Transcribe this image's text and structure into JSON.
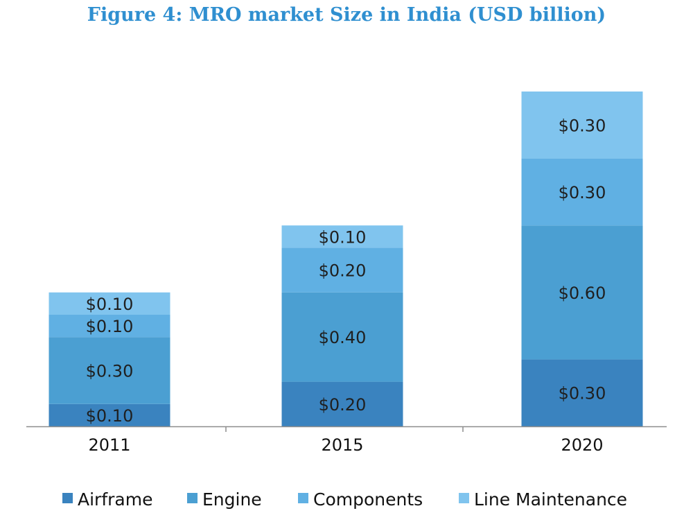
{
  "chart_data": {
    "type": "bar",
    "stacked": true,
    "title": "Figure 4: MRO market Size in India (USD billion)",
    "categories": [
      "2011",
      "2015",
      "2020"
    ],
    "series": [
      {
        "name": "Airframe",
        "color": "#3a83bf",
        "values": [
          0.1,
          0.2,
          0.3
        ],
        "labels": [
          "$0.10",
          "$0.20",
          "$0.30"
        ]
      },
      {
        "name": "Engine",
        "color": "#4b9fd2",
        "values": [
          0.3,
          0.4,
          0.6
        ],
        "labels": [
          "$0.30",
          "$0.40",
          "$0.60"
        ]
      },
      {
        "name": "Components",
        "color": "#60b0e3",
        "values": [
          0.1,
          0.2,
          0.3
        ],
        "labels": [
          "$0.10",
          "$0.20",
          "$0.30"
        ]
      },
      {
        "name": "Line Maintenance",
        "color": "#80c4ee",
        "values": [
          0.1,
          0.1,
          0.3
        ],
        "labels": [
          "$0.10",
          "$0.10",
          "$0.30"
        ]
      }
    ],
    "ylim": [
      0,
      1.5
    ],
    "xlabel": "",
    "ylabel": "",
    "grid": false,
    "legend": "bottom"
  }
}
